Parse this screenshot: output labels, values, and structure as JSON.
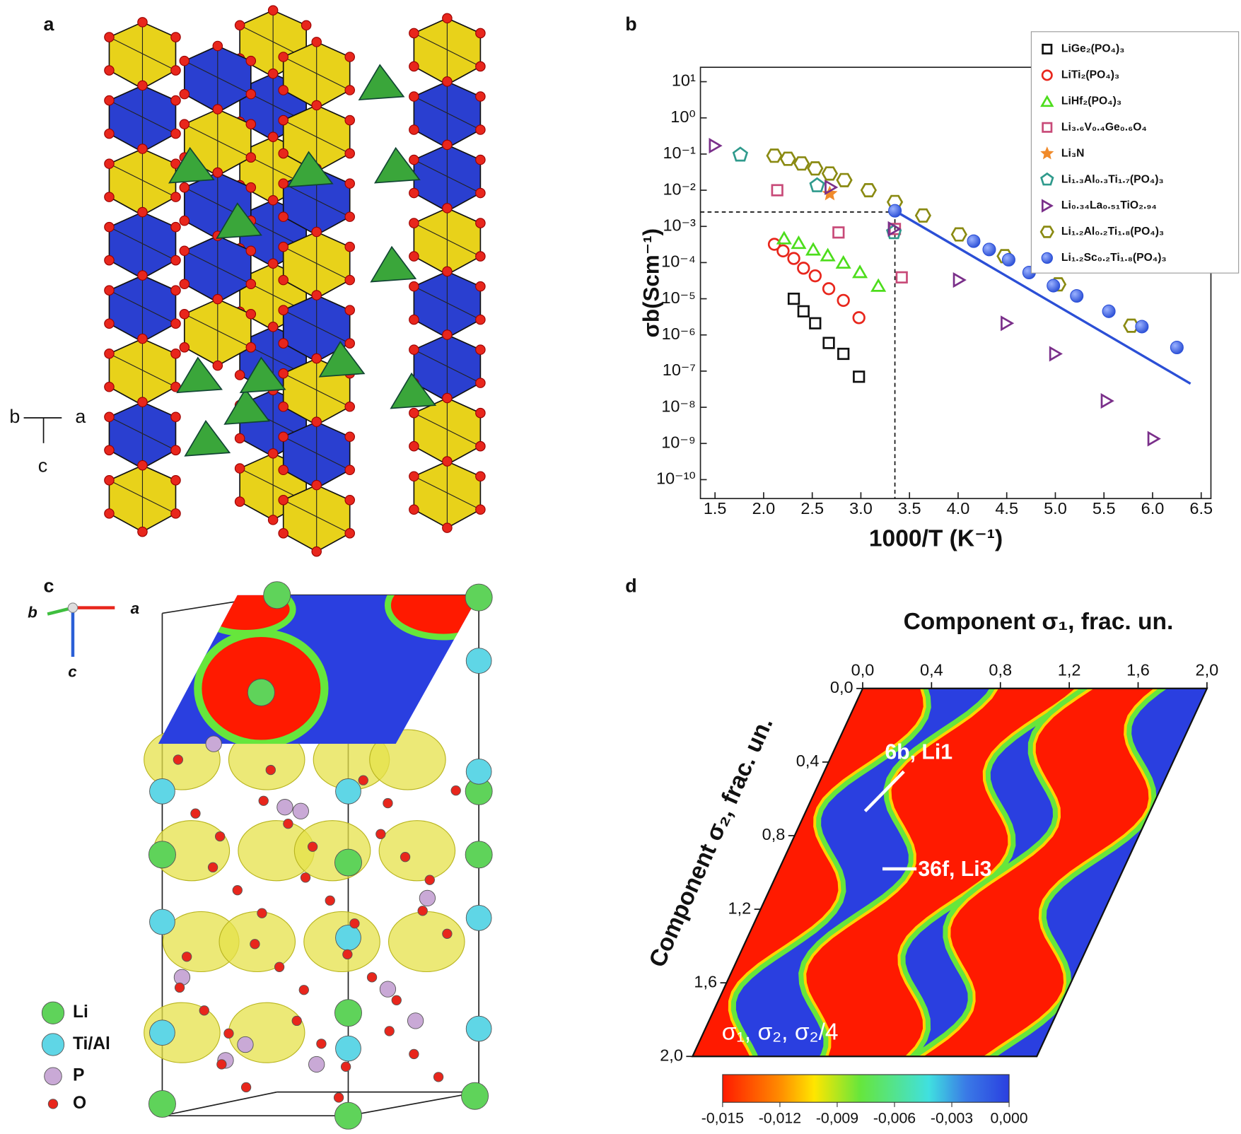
{
  "panels": {
    "a": {
      "label": "a",
      "axes": [
        "b",
        "a",
        "c"
      ]
    },
    "c": {
      "label": "c",
      "axes": [
        "b",
        "a",
        "c"
      ],
      "legend": [
        {
          "name": "Li",
          "color": "#5fd35a"
        },
        {
          "name": "Ti/Al",
          "color": "#5fd6e6"
        },
        {
          "name": "P",
          "color": "#c9a9d6"
        },
        {
          "name": "O",
          "color": "#e8261c"
        }
      ]
    },
    "d": {
      "label": "d",
      "title": "Component σ₁, frac. un.",
      "ylabel": "Component σ₂, frac. un.",
      "xticks": [
        "0,0",
        "0,4",
        "0,8",
        "1,2",
        "1,6",
        "2,0"
      ],
      "yticks": [
        "0,0",
        "0,4",
        "0,8",
        "1,2",
        "1,6",
        "2,0"
      ],
      "annotations": [
        "6b, Li1",
        "36f, Li3",
        "σ₁, σ₂, σ₂/4"
      ],
      "colorbar": [
        "-0,015",
        "-0,012",
        "-0,009",
        "-0,006",
        "-0,003",
        "0,000"
      ]
    }
  },
  "chart_data": {
    "type": "scatter",
    "panel_label": "b",
    "xlabel": "1000/T (K⁻¹)",
    "ylabel": "σb(Scm⁻¹)",
    "xlim": [
      1.35,
      6.6
    ],
    "ylim": [
      3e-11,
      25
    ],
    "log_y": true,
    "xticks": [
      1.5,
      {
        "value": 2,
        "label": "2.0"
      },
      2.5,
      {
        "value": 3,
        "label": "3.0"
      },
      3.5,
      {
        "value": 4,
        "label": "4.0"
      },
      4.5,
      {
        "value": 5,
        "label": "5.0"
      },
      5.5,
      {
        "value": 6,
        "label": "6.0"
      },
      6.5
    ],
    "yticks": [
      {
        "value": 10,
        "label": "10¹"
      },
      {
        "value": 1,
        "label": "10⁰"
      },
      {
        "value": 0.1,
        "label": "10⁻¹"
      },
      {
        "value": 0.01,
        "label": "10⁻²"
      },
      {
        "value": 0.001,
        "label": "10⁻³"
      },
      {
        "value": 0.0001,
        "label": "10⁻⁴"
      },
      {
        "value": 1e-05,
        "label": "10⁻⁵"
      },
      {
        "value": 1e-06,
        "label": "10⁻⁶"
      },
      {
        "value": 1e-07,
        "label": "10⁻⁷"
      },
      {
        "value": 1e-08,
        "label": "10⁻⁸"
      },
      {
        "value": 1e-09,
        "label": "10⁻⁹"
      },
      {
        "value": 1e-10,
        "label": "10⁻¹⁰"
      }
    ],
    "legend": "upper right",
    "series": [
      {
        "name": "LiGe₂(PO₄)₃",
        "color": "#111111",
        "marker": "square",
        "x": [
          2.31,
          2.41,
          2.53,
          2.67,
          2.82,
          2.98
        ],
        "values": [
          1e-05,
          4.5e-06,
          2.1e-06,
          6e-07,
          3e-07,
          7e-08
        ]
      },
      {
        "name": "LiTi₂(PO₄)₃",
        "color": "#e8261c",
        "marker": "circle",
        "x": [
          2.11,
          2.2,
          2.31,
          2.41,
          2.53,
          2.67,
          2.82,
          2.98
        ],
        "values": [
          0.00032,
          0.00021,
          0.00013,
          7e-05,
          4.3e-05,
          1.9e-05,
          9e-06,
          3e-06
        ]
      },
      {
        "name": "LiHf₂(PO₄)₃",
        "color": "#4ddd1c",
        "marker": "triangle",
        "x": [
          2.21,
          2.36,
          2.51,
          2.66,
          2.82,
          2.99,
          3.18
        ],
        "values": [
          0.00047,
          0.00035,
          0.00023,
          0.00016,
          0.0001,
          5.5e-05,
          2.3e-05
        ]
      },
      {
        "name": "Li₃.₆V₀.₄Ge₀.₆O₄",
        "color": "#c84a78",
        "marker": "square",
        "x": [
          2.14,
          2.77,
          3.35,
          3.42
        ],
        "values": [
          0.01,
          0.00068,
          0.00085,
          3.9e-05
        ]
      },
      {
        "name": "Li₃N",
        "color": "#f08a2a",
        "marker": "star",
        "x": [
          2.68
        ],
        "values": [
          0.008
        ]
      },
      {
        "name": "Li₁.₃Al₀.₃Ti₁.₇(PO₄)₃",
        "color": "#2f9a8c",
        "marker": "pentagon",
        "x": [
          1.76,
          2.55,
          3.34
        ],
        "values": [
          0.095,
          0.0135,
          0.00068
        ]
      },
      {
        "name": "Li₀.₃₄La₀.₅₁TiO₂.₉₄",
        "color": "#7a2f8a",
        "marker": "tri-right",
        "x": [
          1.5,
          2.69,
          3.34,
          4.01,
          4.5,
          5.0,
          5.53,
          6.01
        ],
        "values": [
          0.17,
          0.012,
          0.00085,
          3.3e-05,
          2.1e-06,
          3e-07,
          1.5e-08,
          1.35e-09
        ]
      },
      {
        "name": "Li₁.₂Al₀.₂Ti₁.₈(PO₄)₃",
        "color": "#8a8a12",
        "marker": "hexagon",
        "x": [
          2.11,
          2.25,
          2.39,
          2.53,
          2.68,
          2.83,
          3.08,
          3.35,
          3.64,
          4.01,
          4.48,
          5.03,
          5.78
        ],
        "values": [
          0.09,
          0.074,
          0.055,
          0.04,
          0.029,
          0.019,
          0.01,
          0.0047,
          0.002,
          0.0006,
          0.00015,
          2.5e-05,
          1.8e-06
        ]
      },
      {
        "name": "Li₁.₂Sc₀.₂Ti₁.₈(PO₄)₃",
        "color": "#2b4fd6",
        "marker": "dot",
        "x": [
          3.35,
          4.16,
          4.32,
          4.52,
          4.73,
          4.98,
          5.22,
          5.55,
          5.89,
          6.25
        ],
        "values": [
          0.0027,
          0.00039,
          0.00023,
          0.00012,
          5.3e-05,
          2.3e-05,
          1.2e-05,
          4.5e-06,
          1.7e-06,
          4.5e-07
        ]
      }
    ],
    "fit": {
      "color": "#2b4fd6",
      "x": [
        3.35,
        6.39
      ],
      "y": [
        0.0027,
        4.5e-08
      ]
    },
    "reference": {
      "x": 3.35,
      "y": 0.0025
    }
  }
}
